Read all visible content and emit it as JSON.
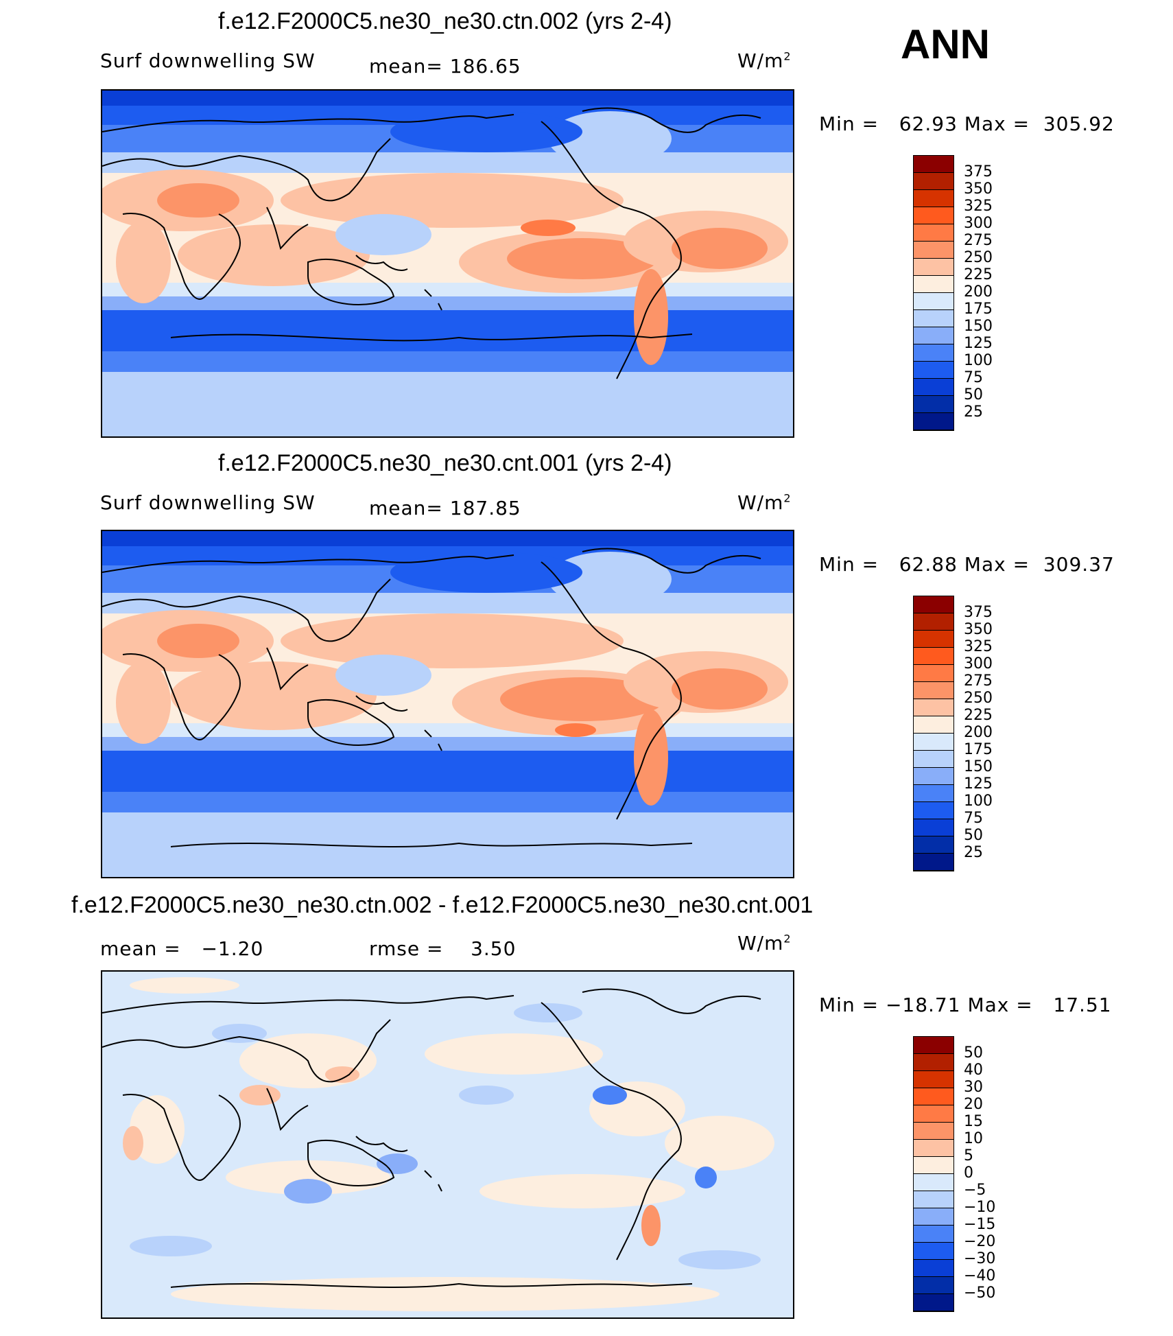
{
  "season": "ANN",
  "panels": [
    {
      "title": "f.e12.F2000C5.ne30_ne30.ctn.002 (yrs 2-4)",
      "variable": "Surf downwelling SW",
      "stat": "mean= 186.65",
      "units": "W/m",
      "units_exp": "2",
      "minmax": "Min =   62.93 Max =  305.92"
    },
    {
      "title": "f.e12.F2000C5.ne30_ne30.cnt.001 (yrs 2-4)",
      "variable": "Surf downwelling SW",
      "stat": "mean= 187.85",
      "units": "W/m",
      "units_exp": "2",
      "minmax": "Min =   62.88 Max =  309.37"
    },
    {
      "title": "f.e12.F2000C5.ne30_ne30.ctn.002 - f.e12.F2000C5.ne30_ne30.cnt.001",
      "mean": "mean =   −1.20",
      "rmse": "rmse =    3.50",
      "units": "W/m",
      "units_exp": "2",
      "minmax": "Min = −18.71 Max =   17.51"
    }
  ],
  "colorbars": [
    {
      "labels": [
        "375",
        "350",
        "325",
        "300",
        "275",
        "250",
        "225",
        "200",
        "175",
        "150",
        "125",
        "100",
        "75",
        "50",
        "25"
      ],
      "colors": [
        "#8b0000",
        "#b22000",
        "#d63300",
        "#ff5a1e",
        "#ff7a45",
        "#fc9468",
        "#fdc2a4",
        "#fdeedf",
        "#d9e9fb",
        "#b8d2fb",
        "#89aef9",
        "#4a82f7",
        "#1d5cf0",
        "#0a3fd6",
        "#022ea8",
        "#00188a"
      ]
    },
    {
      "labels": [
        "375",
        "350",
        "325",
        "300",
        "275",
        "250",
        "225",
        "200",
        "175",
        "150",
        "125",
        "100",
        "75",
        "50",
        "25"
      ],
      "colors": [
        "#8b0000",
        "#b22000",
        "#d63300",
        "#ff5a1e",
        "#ff7a45",
        "#fc9468",
        "#fdc2a4",
        "#fdeedf",
        "#d9e9fb",
        "#b8d2fb",
        "#89aef9",
        "#4a82f7",
        "#1d5cf0",
        "#0a3fd6",
        "#022ea8",
        "#00188a"
      ]
    },
    {
      "labels": [
        "50",
        "40",
        "30",
        "20",
        "15",
        "10",
        "5",
        "0",
        "−5",
        "−10",
        "−15",
        "−20",
        "−30",
        "−40",
        "−50"
      ],
      "colors": [
        "#8b0000",
        "#b22000",
        "#d63300",
        "#ff5a1e",
        "#ff7a45",
        "#fc9468",
        "#fdc2a4",
        "#fdeedf",
        "#d9e9fb",
        "#b8d2fb",
        "#89aef9",
        "#4a82f7",
        "#1d5cf0",
        "#0a3fd6",
        "#022ea8",
        "#00188a"
      ]
    }
  ]
}
